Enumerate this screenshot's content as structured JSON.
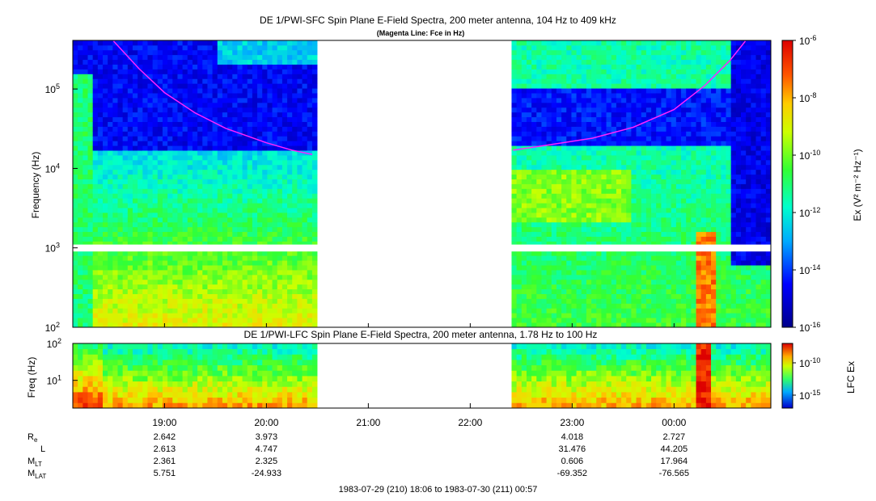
{
  "top_title": "DE 1/PWI-SFC  Spin Plane E-Field Spectra, 200 meter antenna, 104 Hz to 409 kHz",
  "top_subtitle": "(Magenta Line: Fce in Hz)",
  "lower_title": "DE 1/PWI-LFC  Spin Plane E-Field Spectra, 200 meter antenna, 1.78 Hz to 100 Hz",
  "date_range": "1983-07-29 (210) 18:06 to 1983-07-30 (211) 00:57",
  "colors": {
    "fce_line": "#ff22ff",
    "gap": "#ffffff"
  },
  "chart_data": [
    {
      "type": "heatmap",
      "name": "SFC spectrogram",
      "title": "DE 1/PWI-SFC  Spin Plane E-Field Spectra, 200 meter antenna, 104 Hz to 409 kHz",
      "ylabel": "Frequency (Hz)",
      "yscale": "log",
      "ylim": [
        100,
        409000
      ],
      "yticks": [
        {
          "v": 100,
          "label": "10",
          "exp": "2"
        },
        {
          "v": 1000,
          "label": "10",
          "exp": "3"
        },
        {
          "v": 10000,
          "label": "10",
          "exp": "4"
        },
        {
          "v": 100000,
          "label": "10",
          "exp": "5"
        }
      ],
      "xlim_hours": [
        18.1,
        24.95
      ],
      "data_gap_hours": [
        20.48,
        22.4
      ],
      "band_gap_hz": [
        900,
        1100
      ],
      "colorbar": {
        "label": "Ex (V² m⁻² Hz⁻¹)",
        "scale": "log",
        "range": [
          1e-16,
          1e-06
        ],
        "ticks": [
          {
            "v": -6,
            "exp": "-6"
          },
          {
            "v": -8,
            "exp": "-8"
          },
          {
            "v": -10,
            "exp": "-10"
          },
          {
            "v": -12,
            "exp": "-12"
          },
          {
            "v": -14,
            "exp": "-14"
          },
          {
            "v": -16,
            "exp": "-16"
          }
        ]
      },
      "fce_line": {
        "name": "Fce",
        "segments": [
          {
            "t": [
              18.5,
              18.75,
              19.0,
              19.3,
              19.6,
              20.0,
              20.25,
              20.45
            ],
            "f": [
              400000,
              180000,
              90000,
              50000,
              32000,
              21000,
              17000,
              15000
            ]
          },
          {
            "t": [
              22.42,
              22.8,
              23.2,
              23.6,
              24.0,
              24.3,
              24.55,
              24.7
            ],
            "f": [
              17000,
              20000,
              24000,
              33000,
              55000,
              110000,
              230000,
              400000
            ]
          }
        ]
      }
    },
    {
      "type": "heatmap",
      "name": "LFC spectrogram",
      "title": "DE 1/PWI-LFC  Spin Plane E-Field Spectra, 200 meter antenna, 1.78 Hz to 100 Hz",
      "ylabel": "Freq (Hz)",
      "yscale": "log",
      "ylim": [
        1.78,
        100
      ],
      "yticks": [
        {
          "v": 10,
          "label": "10",
          "exp": "1"
        },
        {
          "v": 100,
          "label": "10",
          "exp": "2"
        }
      ],
      "colorbar": {
        "label": "LFC Ex",
        "scale": "log",
        "ticks": [
          {
            "v": -10,
            "exp": "-10"
          },
          {
            "v": -15,
            "exp": "-15"
          }
        ]
      },
      "xlabel_ticks": [
        "19:00",
        "20:00",
        "21:00",
        "22:00",
        "23:00",
        "00:00"
      ],
      "xtick_hours": [
        19,
        20,
        21,
        22,
        23,
        24
      ]
    }
  ],
  "ephemeris": {
    "rows": [
      {
        "label": "R",
        "sub": "e",
        "values": [
          "2.642",
          "3.973",
          "",
          "",
          "4.018",
          "2.727"
        ]
      },
      {
        "label": "L",
        "sub": "",
        "values": [
          "2.613",
          "4.747",
          "",
          "",
          "31.476",
          "44.205"
        ]
      },
      {
        "label": "M",
        "sub": "LT",
        "values": [
          "2.361",
          "2.325",
          "",
          "",
          "0.606",
          "17.964"
        ]
      },
      {
        "label": "M",
        "sub": "LAT",
        "values": [
          "5.751",
          "-24.933",
          "",
          "",
          "-69.352",
          "-76.565"
        ]
      }
    ]
  }
}
